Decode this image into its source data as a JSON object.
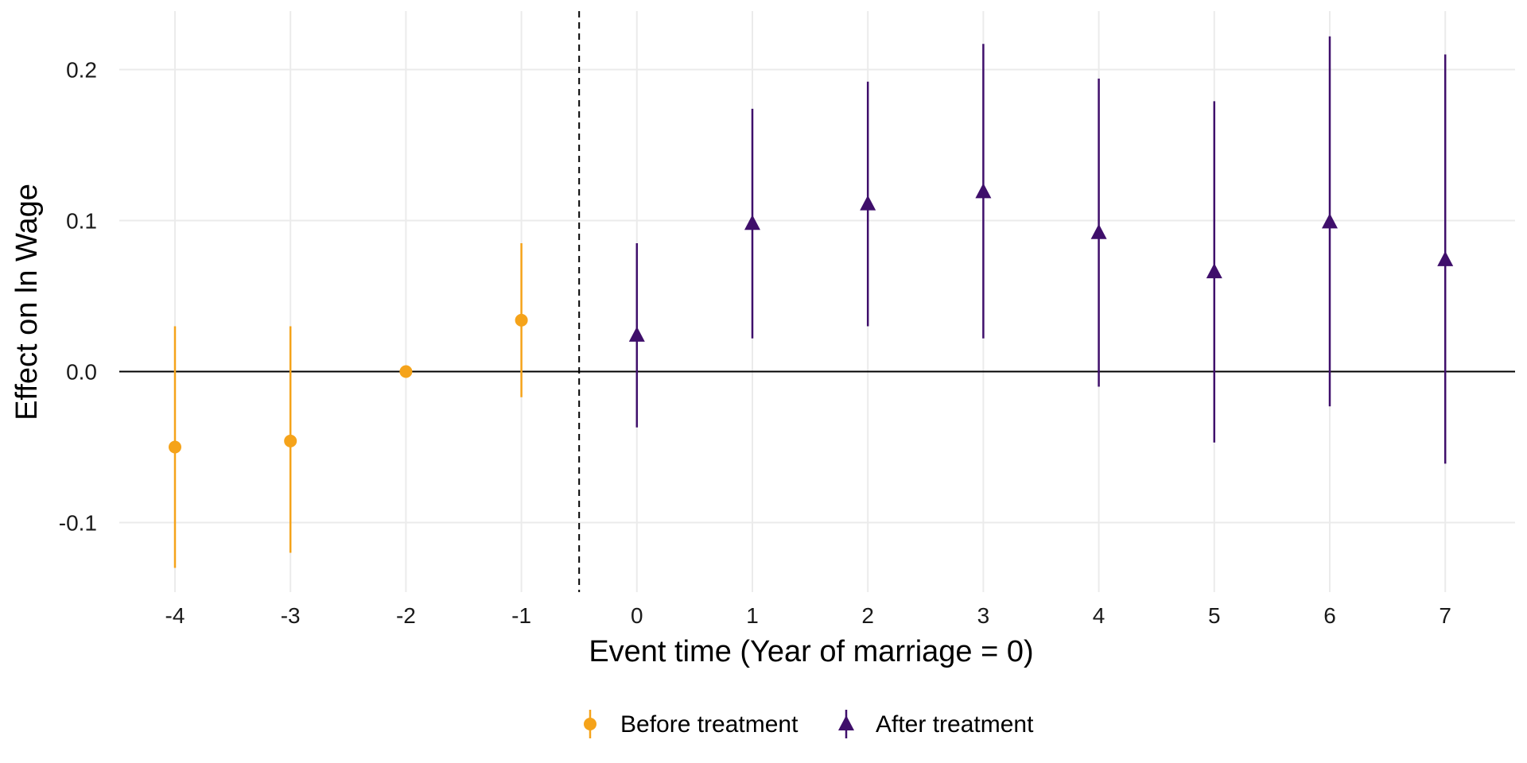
{
  "chart_data": {
    "type": "scatter",
    "title": "",
    "xlabel": "Event time (Year of marriage = 0)",
    "ylabel": "Effect on ln Wage",
    "xlim": [
      -4.5,
      7.6
    ],
    "ylim": [
      -0.147,
      0.238
    ],
    "x_ticks": [
      -4,
      -3,
      -2,
      -1,
      0,
      1,
      2,
      3,
      4,
      5,
      6,
      7
    ],
    "x_tick_labels": [
      "-4",
      "-3",
      "-2",
      "-1",
      "0",
      "1",
      "2",
      "3",
      "4",
      "5",
      "6",
      "7"
    ],
    "y_ticks": [
      -0.1,
      0.0,
      0.1,
      0.2
    ],
    "y_tick_labels": [
      "-0.1",
      "0.0",
      "0.1",
      "0.2"
    ],
    "grid": true,
    "reference_lines": {
      "horizontal_y": 0.0,
      "vertical_dashed_x": -0.5
    },
    "legend_position": "bottom",
    "series": [
      {
        "name": "Before treatment",
        "marker": "circle",
        "color": "#F5A31A",
        "points": [
          {
            "x": -4,
            "y": -0.05,
            "lo": -0.13,
            "hi": 0.03
          },
          {
            "x": -3,
            "y": -0.046,
            "lo": -0.12,
            "hi": 0.03
          },
          {
            "x": -2,
            "y": 0.0,
            "lo": 0.0,
            "hi": 0.0
          },
          {
            "x": -1,
            "y": 0.034,
            "lo": -0.017,
            "hi": 0.085
          }
        ]
      },
      {
        "name": "After treatment",
        "marker": "triangle",
        "color": "#3F0F6B",
        "points": [
          {
            "x": 0,
            "y": 0.024,
            "lo": -0.037,
            "hi": 0.085
          },
          {
            "x": 1,
            "y": 0.098,
            "lo": 0.022,
            "hi": 0.174
          },
          {
            "x": 2,
            "y": 0.111,
            "lo": 0.03,
            "hi": 0.192
          },
          {
            "x": 3,
            "y": 0.119,
            "lo": 0.022,
            "hi": 0.217
          },
          {
            "x": 4,
            "y": 0.092,
            "lo": -0.01,
            "hi": 0.194
          },
          {
            "x": 5,
            "y": 0.066,
            "lo": -0.047,
            "hi": 0.179
          },
          {
            "x": 6,
            "y": 0.099,
            "lo": -0.023,
            "hi": 0.222
          },
          {
            "x": 7,
            "y": 0.074,
            "lo": -0.061,
            "hi": 0.21
          }
        ]
      }
    ]
  }
}
